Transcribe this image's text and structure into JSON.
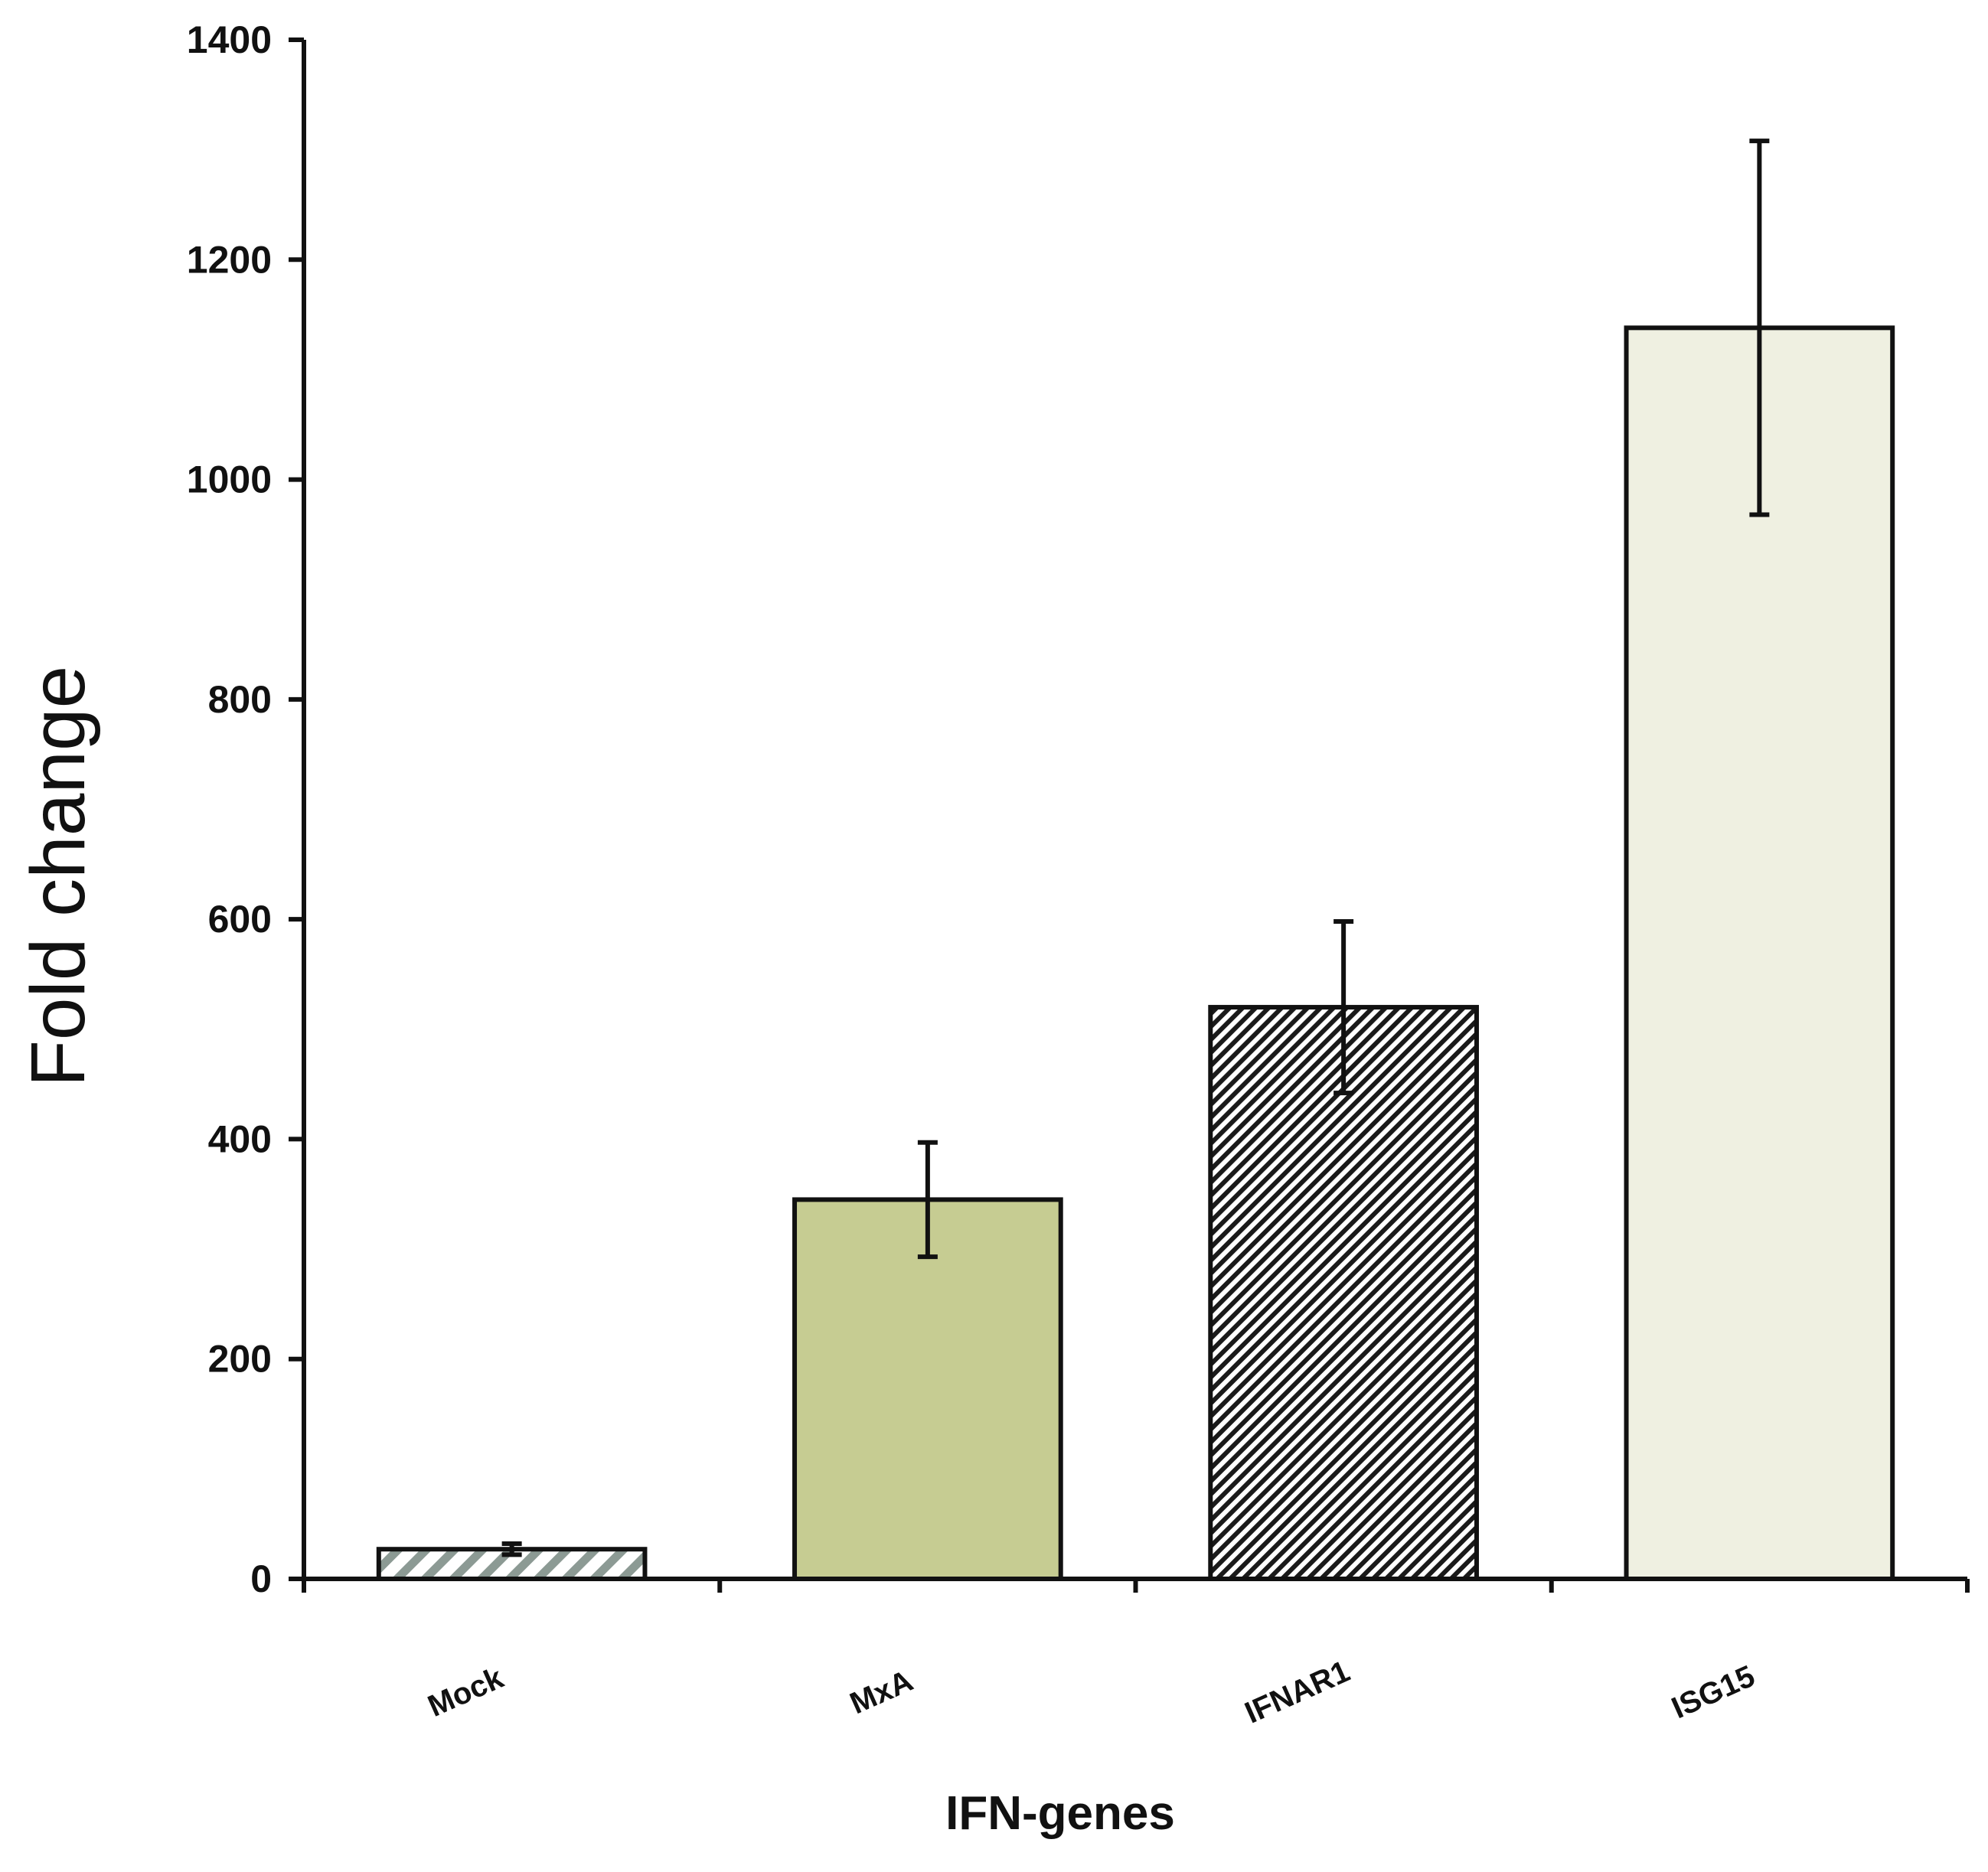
{
  "chart_data": {
    "type": "bar",
    "title": "",
    "xlabel": "IFN-genes",
    "ylabel": "Fold change",
    "ylim": [
      0,
      1400
    ],
    "yticks": [
      0,
      200,
      400,
      600,
      800,
      1000,
      1200,
      1400
    ],
    "categories": [
      "Mock",
      "MxA",
      "IFNAR1",
      "ISG15"
    ],
    "values": [
      27,
      345,
      520,
      1138
    ],
    "errors": [
      5,
      52,
      78,
      170
    ],
    "fills": [
      {
        "pattern": "wide-diagonal-stripes",
        "color": "#8c9a94"
      },
      {
        "pattern": "solid",
        "color": "#c6cc92"
      },
      {
        "pattern": "dense-diagonal-stripes",
        "color": "#1a1a1a"
      },
      {
        "pattern": "solid",
        "color": "#eff0e1"
      }
    ],
    "grid": false,
    "legend": "none"
  }
}
